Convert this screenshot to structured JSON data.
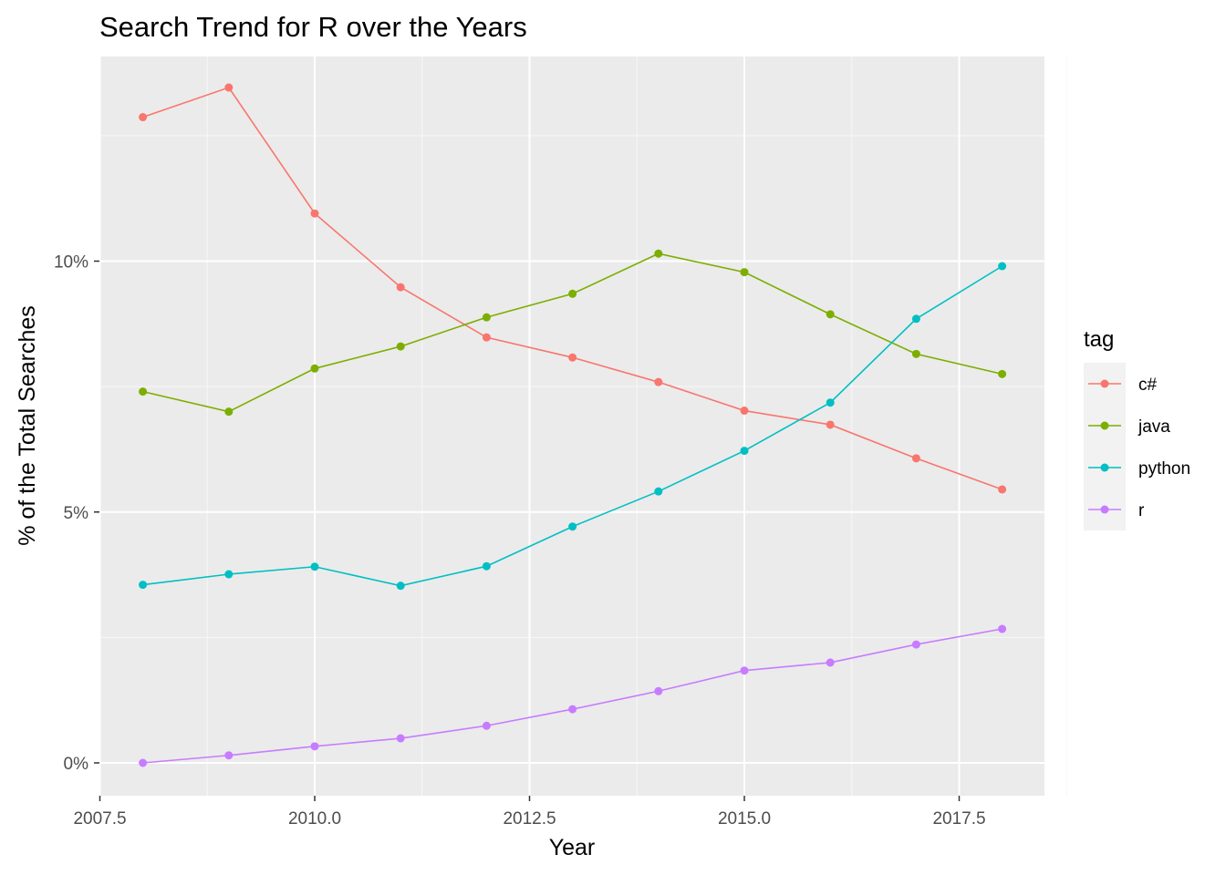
{
  "chart_data": {
    "type": "line",
    "title": "Search Trend for R over the Years",
    "xlabel": "Year",
    "ylabel": "% of the Total Searches",
    "x": [
      2008,
      2009,
      2010,
      2011,
      2012,
      2013,
      2014,
      2015,
      2016,
      2017,
      2018
    ],
    "xlim": [
      2007.5,
      2018.5
    ],
    "ylim": [
      0,
      0.13
    ],
    "x_ticks": [
      2007.5,
      2010.0,
      2012.5,
      2015.0,
      2017.5
    ],
    "x_tick_labels": [
      "2007.5",
      "2010.0",
      "2012.5",
      "2015.0",
      "2017.5"
    ],
    "y_ticks": [
      0,
      0.05,
      0.1
    ],
    "y_tick_labels": [
      "0%",
      "5%",
      "10%"
    ],
    "grid": true,
    "legend_title": "tag",
    "legend_position": "right",
    "series": [
      {
        "name": "c#",
        "color": "#F8766D",
        "values": [
          0.1287,
          0.1346,
          0.1095,
          0.0948,
          0.0848,
          0.0808,
          0.0759,
          0.0702,
          0.0674,
          0.0607,
          0.0545
        ]
      },
      {
        "name": "java",
        "color": "#7CAE00",
        "values": [
          0.074,
          0.07,
          0.0786,
          0.083,
          0.0888,
          0.0935,
          0.1015,
          0.0978,
          0.0894,
          0.0815,
          0.0775
        ]
      },
      {
        "name": "python",
        "color": "#00BFC4",
        "values": [
          0.0355,
          0.0376,
          0.0391,
          0.0353,
          0.0392,
          0.0471,
          0.0541,
          0.0622,
          0.0718,
          0.0885,
          0.099
        ]
      },
      {
        "name": "r",
        "color": "#C77CFF",
        "values": [
          0.0,
          0.0015,
          0.0033,
          0.0049,
          0.0074,
          0.0107,
          0.0143,
          0.0184,
          0.02,
          0.0236,
          0.0267
        ]
      }
    ]
  }
}
